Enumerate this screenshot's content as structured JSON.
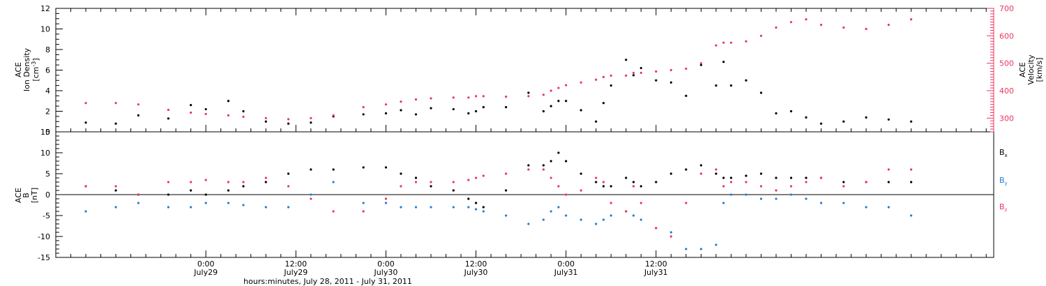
{
  "chart_data": [
    {
      "type": "scatter",
      "panel": "solar-wind",
      "ylabel": "ACE Ion Density",
      "ylabel_lines": [
        "ACE",
        "Ion Density"
      ],
      "ylabel_unit_base": "[cm",
      "ylabel_unit_exp": "-3",
      "ylabel_unit_close": "]",
      "ylim": [
        0,
        12
      ],
      "yticks": [
        0,
        2,
        4,
        6,
        8,
        10,
        12
      ],
      "y2label": "ACE Velocity",
      "y2label_lines": [
        "ACE",
        "Velocity"
      ],
      "y2label_unit": "[km/s]",
      "y2lim": [
        250,
        700
      ],
      "y2ticks": [
        300,
        400,
        500,
        600,
        700
      ],
      "series": [
        {
          "axis": "left",
          "color": "#000000",
          "x": [
            -16,
            -12,
            -9,
            -5,
            -2,
            0,
            3,
            5,
            8,
            11,
            14,
            17,
            21,
            24,
            26,
            28,
            30,
            33,
            35,
            36,
            37,
            40,
            43,
            45,
            46,
            47,
            48,
            50,
            52,
            53,
            54,
            56,
            57,
            58,
            60,
            62,
            64,
            66,
            68,
            69,
            70,
            72,
            74,
            76,
            78,
            80,
            82,
            85,
            88,
            91,
            94
          ],
          "y": [
            0.9,
            0.8,
            1.6,
            1.3,
            2.6,
            2.2,
            3.0,
            2.0,
            1.0,
            0.8,
            0.9,
            1.5,
            1.7,
            1.8,
            2.1,
            1.7,
            2.3,
            2.2,
            1.8,
            2.0,
            2.4,
            2.4,
            3.8,
            2.0,
            2.5,
            3.0,
            3.0,
            2.1,
            1.0,
            2.8,
            4.5,
            7.0,
            5.5,
            6.2,
            5.0,
            4.8,
            3.5,
            6.5,
            4.5,
            6.8,
            4.5,
            5.0,
            3.8,
            1.8,
            2.0,
            1.4,
            0.8,
            1.0,
            1.4,
            1.2,
            1.0
          ]
        },
        {
          "axis": "right",
          "color": "#e8375f",
          "x": [
            -16,
            -12,
            -9,
            -5,
            -2,
            0,
            3,
            5,
            8,
            11,
            14,
            17,
            21,
            24,
            26,
            28,
            30,
            33,
            35,
            36,
            37,
            40,
            43,
            45,
            46,
            47,
            48,
            50,
            52,
            53,
            54,
            56,
            57,
            58,
            60,
            62,
            64,
            66,
            68,
            69,
            70,
            72,
            74,
            76,
            78,
            80,
            82,
            85,
            88,
            91,
            94
          ],
          "y": [
            355,
            355,
            350,
            330,
            320,
            315,
            310,
            305,
            300,
            296,
            300,
            310,
            340,
            350,
            360,
            368,
            372,
            375,
            375,
            380,
            380,
            378,
            380,
            385,
            400,
            410,
            420,
            430,
            440,
            450,
            455,
            455,
            465,
            465,
            470,
            475,
            480,
            500,
            565,
            575,
            575,
            580,
            600,
            630,
            650,
            660,
            640,
            630,
            625,
            640,
            660
          ]
        }
      ]
    },
    {
      "type": "scatter",
      "panel": "magnetic-field",
      "ylabel": "ACE B [nT]",
      "ylabel_lines": [
        "ACE",
        "B"
      ],
      "ylabel_unit": "[nT]",
      "ylim": [
        -15,
        15
      ],
      "yticks": [
        -15,
        -10,
        -5,
        0,
        5,
        10,
        15
      ],
      "legend_position": "right",
      "series": [
        {
          "name_base": "B",
          "name_sub": "x",
          "color": "#000000",
          "x": [
            -16,
            -12,
            -9,
            -5,
            -2,
            0,
            3,
            5,
            8,
            11,
            14,
            17,
            21,
            24,
            26,
            28,
            30,
            33,
            35,
            36,
            37,
            40,
            43,
            45,
            46,
            47,
            48,
            50,
            52,
            53,
            54,
            56,
            57,
            58,
            60,
            62,
            64,
            66,
            68,
            69,
            70,
            72,
            74,
            76,
            78,
            80,
            82,
            85,
            88,
            91,
            94
          ],
          "y": [
            2,
            1,
            0,
            0,
            1,
            0,
            1,
            2,
            3,
            5,
            6,
            6,
            6.5,
            6.5,
            5,
            4,
            2,
            1,
            -1,
            -2,
            -3,
            1,
            7,
            7,
            8,
            10,
            8,
            5,
            3,
            2,
            2,
            4,
            3,
            2,
            3,
            5,
            6,
            7,
            5,
            4,
            4,
            4.5,
            5,
            4,
            4,
            4,
            4,
            3,
            3,
            3,
            3
          ]
        },
        {
          "name_base": "B",
          "name_sub": "y",
          "color": "#1f7fd6",
          "x": [
            -16,
            -12,
            -9,
            -5,
            -2,
            0,
            3,
            5,
            8,
            11,
            14,
            17,
            21,
            24,
            26,
            28,
            30,
            33,
            35,
            36,
            37,
            40,
            43,
            45,
            46,
            47,
            48,
            50,
            52,
            53,
            54,
            56,
            57,
            58,
            60,
            62,
            64,
            66,
            68,
            69,
            70,
            72,
            74,
            76,
            78,
            80,
            82,
            85,
            88,
            91,
            94
          ],
          "y": [
            -4,
            -3,
            -2,
            -3,
            -3,
            -2,
            -2,
            -2.5,
            -3,
            -3,
            0,
            3,
            -2,
            -2,
            -3,
            -3,
            -3,
            -3,
            -3,
            -3.5,
            -4,
            -5,
            -7,
            -6,
            -4,
            -3,
            -5,
            -6,
            -7,
            -6,
            -5,
            -4,
            -5,
            -6,
            -8,
            -9,
            -13,
            -13,
            -12,
            -2,
            0,
            0,
            -1,
            -1,
            0,
            -1,
            -2,
            -2,
            -3,
            -3,
            -5
          ]
        },
        {
          "name_base": "B",
          "name_sub": "z",
          "color": "#e8375f",
          "x": [
            -16,
            -12,
            -9,
            -5,
            -2,
            0,
            3,
            5,
            8,
            11,
            14,
            17,
            21,
            24,
            26,
            28,
            30,
            33,
            35,
            36,
            37,
            40,
            43,
            45,
            46,
            47,
            48,
            50,
            52,
            53,
            54,
            56,
            57,
            58,
            60,
            62,
            64,
            66,
            68,
            69,
            70,
            72,
            74,
            76,
            78,
            80,
            82,
            85,
            88,
            91,
            94
          ],
          "y": [
            2,
            2,
            0,
            3,
            3,
            3.5,
            3,
            3,
            4,
            2,
            -1,
            -4,
            -4,
            -1,
            2,
            3,
            3,
            3,
            3.5,
            4,
            4.5,
            5,
            6,
            6,
            4,
            2,
            0,
            1,
            4,
            3,
            -2,
            -4,
            2,
            -2,
            -8,
            -10,
            -2,
            5,
            6,
            2,
            3,
            3,
            2,
            1,
            2,
            3,
            4,
            2,
            3,
            6,
            6
          ]
        }
      ]
    }
  ],
  "xaxis": {
    "title": "hours:minutes, July 28, 2011 - July 31, 2011",
    "xlim": [
      -20,
      105
    ],
    "ticks": [
      {
        "x": 0,
        "time": "0:00",
        "date": "July29"
      },
      {
        "x": 12,
        "time": "12:00",
        "date": "July29"
      },
      {
        "x": 24,
        "time": "0:00",
        "date": "July30"
      },
      {
        "x": 36,
        "time": "12:00",
        "date": "July30"
      },
      {
        "x": 48,
        "time": "0:00",
        "date": "July31"
      },
      {
        "x": 60,
        "time": "12:00",
        "date": "July31"
      }
    ]
  },
  "colors": {
    "density": "#000000",
    "velocity": "#e8375f",
    "bx": "#000000",
    "by": "#1f7fd6",
    "bz": "#e8375f",
    "frame": "#000000"
  }
}
